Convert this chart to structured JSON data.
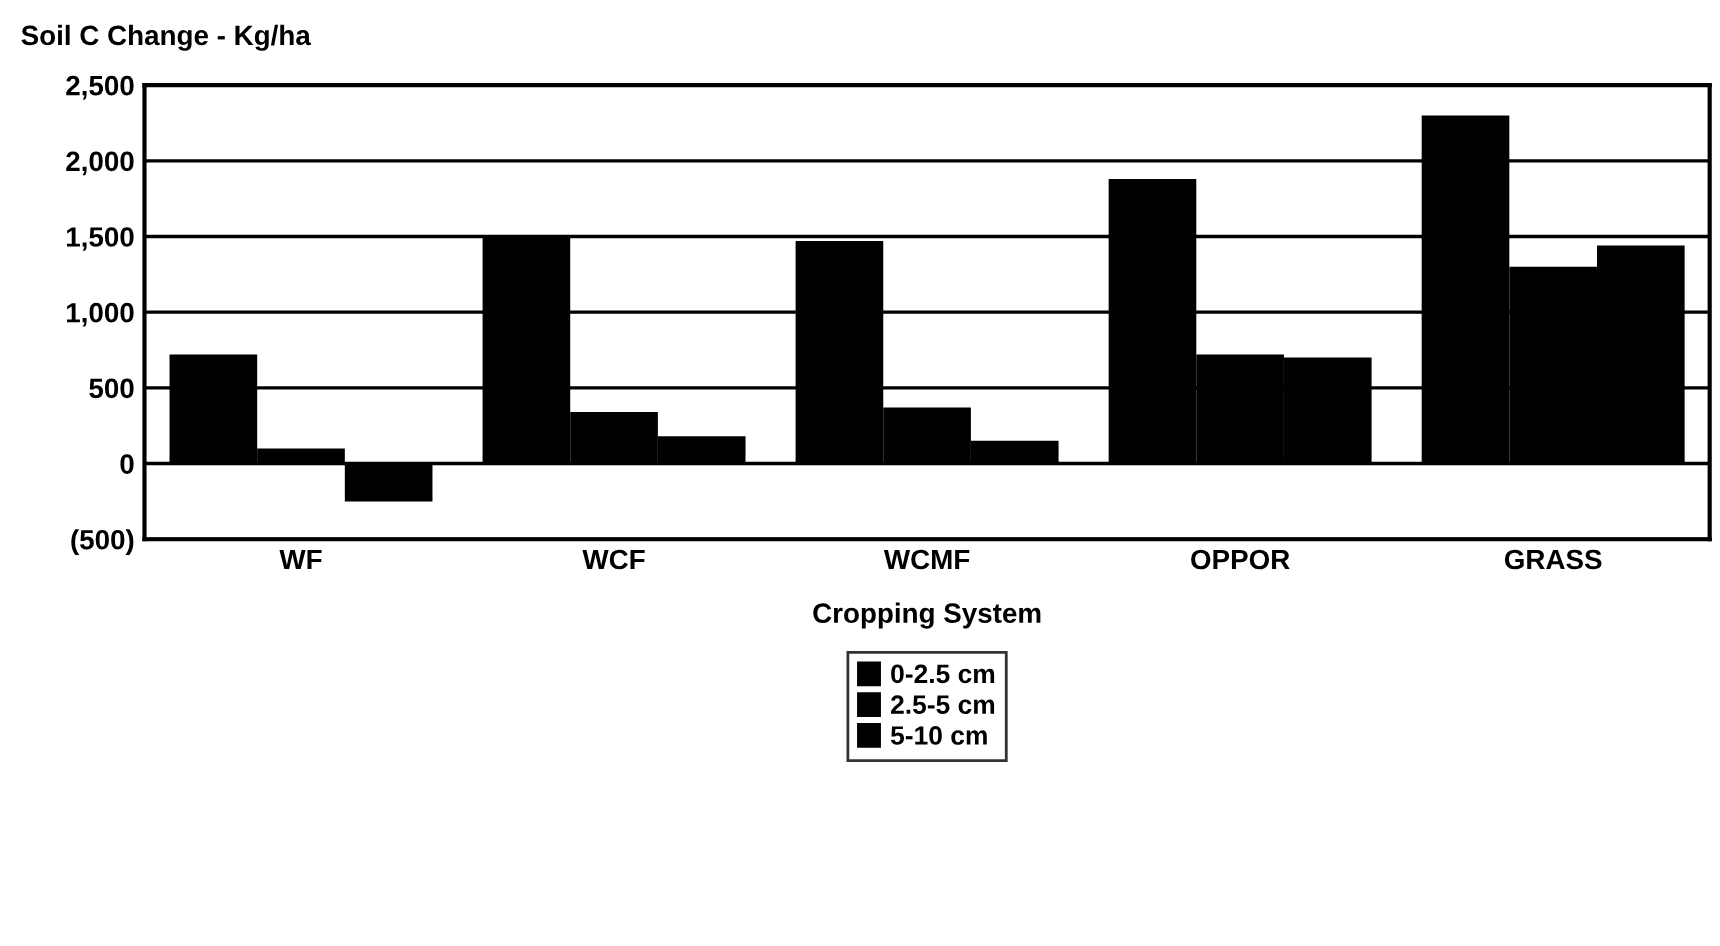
{
  "chart_data": {
    "type": "bar",
    "ylabel": "Soil C Change - Kg/ha",
    "xlabel": "Cropping System",
    "categories": [
      "WF",
      "WCF",
      "WCMF",
      "OPPOR",
      "GRASS"
    ],
    "series": [
      {
        "name": "0-2.5 cm",
        "color": "#000000",
        "values": [
          720,
          1500,
          1470,
          1880,
          2300
        ]
      },
      {
        "name": "2.5-5 cm",
        "color": "#000000",
        "values": [
          100,
          340,
          370,
          720,
          1300
        ]
      },
      {
        "name": "5-10 cm",
        "color": "#000000",
        "values": [
          -250,
          180,
          150,
          700,
          1440
        ]
      }
    ],
    "ylim": [
      -500,
      2500
    ],
    "yticks": [
      {
        "value": -500,
        "label": "(500)"
      },
      0,
      500,
      {
        "value": 1000,
        "label": "1,000"
      },
      {
        "value": 1500,
        "label": "1,500"
      },
      {
        "value": 2000,
        "label": "2,000"
      },
      {
        "value": 2500,
        "label": "2,500"
      }
    ],
    "grid": "y",
    "legend": "bottom"
  }
}
